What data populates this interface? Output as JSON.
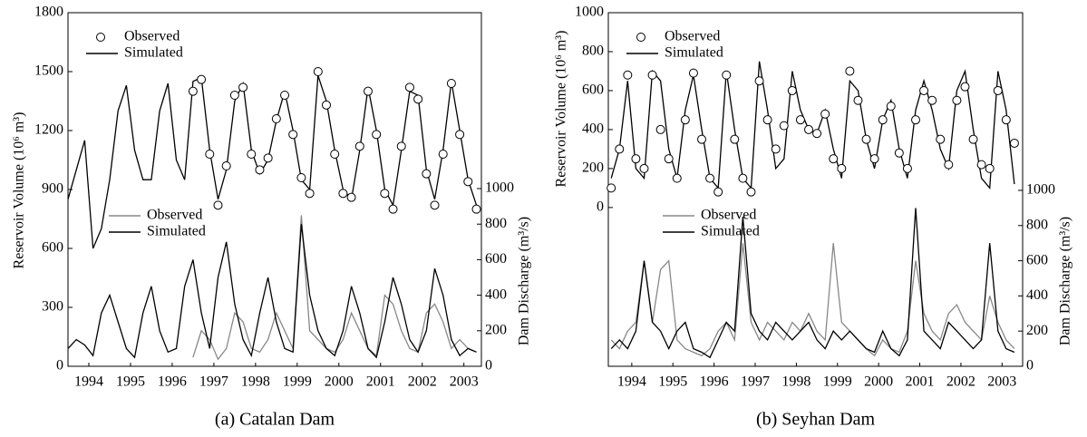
{
  "chart_data": [
    {
      "type": "line",
      "title": "(a) Catalan Dam",
      "ylabel": "Reservoir Volume (10⁶ m³)",
      "y2label": "Dam Discharge (m³/s)",
      "x": [
        1994.0,
        1994.2,
        1994.4,
        1994.6,
        1994.8,
        1995.0,
        1995.2,
        1995.4,
        1995.6,
        1995.8,
        1996.0,
        1996.2,
        1996.4,
        1996.6,
        1996.8,
        1997.0,
        1997.2,
        1997.4,
        1997.6,
        1997.8,
        1998.0,
        1998.2,
        1998.4,
        1998.6,
        1998.8,
        1999.0,
        1999.2,
        1999.4,
        1999.6,
        1999.8,
        2000.0,
        2000.2,
        2000.4,
        2000.6,
        2000.8,
        2001.0,
        2001.2,
        2001.4,
        2001.6,
        2001.8,
        2002.0,
        2002.2,
        2002.4,
        2002.6,
        2002.8,
        2003.0,
        2003.2,
        2003.4,
        2003.6,
        2003.8
      ],
      "xlim": [
        1994.0,
        2003.92
      ],
      "xticks": [
        {
          "value": 1994.5,
          "label": "1994"
        },
        {
          "value": 1995.5,
          "label": "1995"
        },
        {
          "value": 1996.5,
          "label": "1996"
        },
        {
          "value": 1997.5,
          "label": "1997"
        },
        {
          "value": 1998.5,
          "label": "1998"
        },
        {
          "value": 1999.5,
          "label": "1999"
        },
        {
          "value": 2000.5,
          "label": "2000"
        },
        {
          "value": 2001.5,
          "label": "2001"
        },
        {
          "value": 2002.5,
          "label": "2002"
        },
        {
          "value": 2003.5,
          "label": "2003"
        }
      ],
      "ylim": [
        0,
        1800
      ],
      "yticks": [
        0,
        300,
        600,
        900,
        1200,
        1500,
        1800
      ],
      "y2lim": [
        0,
        1990
      ],
      "y2ticks": [
        0,
        200,
        400,
        600,
        800,
        1000
      ],
      "series": [
        {
          "name": "Observed",
          "color": "#000000",
          "marker": "circle",
          "values": [
            null,
            null,
            null,
            null,
            null,
            null,
            null,
            null,
            null,
            null,
            null,
            null,
            null,
            null,
            null,
            1400,
            1460,
            1080,
            820,
            1020,
            1380,
            1420,
            1080,
            1000,
            1060,
            1260,
            1380,
            1180,
            960,
            880,
            1500,
            1330,
            1080,
            880,
            860,
            1120,
            1400,
            1180,
            880,
            800,
            1120,
            1420,
            1360,
            980,
            820,
            1080,
            1440,
            1180,
            940,
            800
          ]
        },
        {
          "name": "Simulated",
          "color": "#000000",
          "values": [
            850,
            1000,
            1150,
            600,
            700,
            950,
            1300,
            1430,
            1100,
            950,
            950,
            1300,
            1440,
            1050,
            950,
            1450,
            1470,
            1100,
            850,
            1000,
            1350,
            1440,
            1100,
            980,
            1050,
            1250,
            1400,
            1200,
            950,
            900,
            1480,
            1350,
            1100,
            900,
            850,
            1100,
            1420,
            1200,
            900,
            820,
            1100,
            1400,
            1380,
            1000,
            850,
            1100,
            1450,
            1200,
            950,
            820
          ]
        },
        {
          "name": "Observed",
          "color": "#888888",
          "axis": "y2",
          "values": [
            null,
            null,
            null,
            null,
            null,
            null,
            null,
            null,
            null,
            null,
            null,
            null,
            null,
            null,
            null,
            50,
            200,
            150,
            40,
            100,
            300,
            250,
            100,
            80,
            150,
            300,
            200,
            100,
            850,
            200,
            150,
            100,
            80,
            150,
            300,
            200,
            100,
            60,
            400,
            350,
            200,
            100,
            80,
            300,
            350,
            250,
            100,
            150,
            100,
            80
          ]
        },
        {
          "name": "Simulated",
          "color": "#000000",
          "axis": "y2",
          "values": [
            100,
            150,
            120,
            60,
            300,
            400,
            250,
            100,
            50,
            300,
            450,
            200,
            80,
            100,
            450,
            600,
            300,
            100,
            500,
            700,
            350,
            150,
            60,
            300,
            500,
            250,
            100,
            80,
            800,
            400,
            200,
            100,
            60,
            200,
            450,
            300,
            100,
            50,
            250,
            500,
            350,
            150,
            80,
            200,
            550,
            400,
            150,
            60,
            100,
            80
          ]
        }
      ]
    },
    {
      "type": "line",
      "title": "(b) Seyhan Dam",
      "ylabel": "Reservoir Volume (10⁶ m³)",
      "y2label": "Dam Discharge (m³/s)",
      "x": [
        1994.0,
        1994.2,
        1994.4,
        1994.6,
        1994.8,
        1995.0,
        1995.2,
        1995.4,
        1995.6,
        1995.8,
        1996.0,
        1996.2,
        1996.4,
        1996.6,
        1996.8,
        1997.0,
        1997.2,
        1997.4,
        1997.6,
        1997.8,
        1998.0,
        1998.2,
        1998.4,
        1998.6,
        1998.8,
        1999.0,
        1999.2,
        1999.4,
        1999.6,
        1999.8,
        2000.0,
        2000.2,
        2000.4,
        2000.6,
        2000.8,
        2001.0,
        2001.2,
        2001.4,
        2001.6,
        2001.8,
        2002.0,
        2002.2,
        2002.4,
        2002.6,
        2002.8,
        2003.0,
        2003.2,
        2003.4,
        2003.6,
        2003.8
      ],
      "xlim": [
        1993.93,
        2004.0
      ],
      "xticks": [
        {
          "value": 1994.5,
          "label": "1994"
        },
        {
          "value": 1995.5,
          "label": "1995"
        },
        {
          "value": 1996.5,
          "label": "1996"
        },
        {
          "value": 1997.5,
          "label": "1997"
        },
        {
          "value": 1998.5,
          "label": "1998"
        },
        {
          "value": 1999.5,
          "label": "1999"
        },
        {
          "value": 2000.5,
          "label": "2000"
        },
        {
          "value": 2001.5,
          "label": "2001"
        },
        {
          "value": 2002.5,
          "label": "2002"
        },
        {
          "value": 2003.5,
          "label": "2003"
        }
      ],
      "ylim": [
        -815,
        1000
      ],
      "yticks": [
        0,
        200,
        400,
        600,
        800,
        1000
      ],
      "y2lim": [
        0,
        2010
      ],
      "y2ticks": [
        0,
        200,
        400,
        600,
        800,
        1000
      ],
      "series": [
        {
          "name": "Observed",
          "color": "#000000",
          "marker": "circle",
          "values": [
            100,
            300,
            680,
            250,
            200,
            680,
            400,
            250,
            150,
            450,
            690,
            350,
            150,
            80,
            680,
            350,
            150,
            80,
            650,
            450,
            300,
            420,
            600,
            450,
            400,
            380,
            480,
            250,
            200,
            700,
            550,
            350,
            250,
            450,
            520,
            280,
            200,
            450,
            600,
            550,
            350,
            220,
            550,
            620,
            350,
            220,
            200,
            600,
            450,
            330
          ]
        },
        {
          "name": "Simulated",
          "color": "#000000",
          "values": [
            150,
            300,
            650,
            200,
            150,
            700,
            650,
            300,
            150,
            500,
            680,
            400,
            150,
            100,
            700,
            400,
            150,
            100,
            750,
            500,
            200,
            250,
            700,
            500,
            400,
            380,
            500,
            300,
            150,
            650,
            600,
            350,
            200,
            450,
            550,
            300,
            150,
            500,
            650,
            500,
            300,
            200,
            600,
            700,
            400,
            150,
            100,
            700,
            500,
            120
          ]
        },
        {
          "name": "Observed",
          "color": "#888888",
          "axis": "y2",
          "values": [
            150,
            100,
            200,
            250,
            600,
            250,
            550,
            600,
            150,
            100,
            80,
            60,
            100,
            200,
            250,
            150,
            700,
            250,
            150,
            250,
            200,
            150,
            250,
            200,
            300,
            200,
            150,
            700,
            250,
            200,
            150,
            100,
            60,
            150,
            100,
            80,
            200,
            600,
            300,
            200,
            150,
            300,
            350,
            250,
            200,
            150,
            400,
            250,
            150,
            100
          ]
        },
        {
          "name": "Simulated",
          "color": "#000000",
          "axis": "y2",
          "values": [
            100,
            150,
            100,
            200,
            600,
            250,
            200,
            100,
            200,
            250,
            100,
            80,
            50,
            150,
            250,
            200,
            850,
            300,
            200,
            150,
            250,
            200,
            150,
            200,
            250,
            150,
            100,
            200,
            150,
            200,
            150,
            100,
            80,
            200,
            100,
            60,
            150,
            900,
            200,
            150,
            100,
            250,
            200,
            150,
            100,
            150,
            700,
            200,
            100,
            80
          ]
        }
      ]
    }
  ]
}
